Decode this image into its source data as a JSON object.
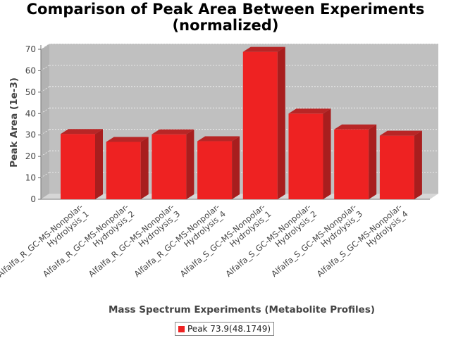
{
  "chart_data": {
    "type": "bar",
    "title": "Comparison of Peak Area Between Experiments",
    "subtitle": "(normalized)",
    "xlabel": "Mass Spectrum Experiments (Metabolite Profiles)",
    "ylabel": "Peak Area (1e-3)",
    "ylim": [
      0,
      70
    ],
    "yticks": [
      0,
      10,
      20,
      30,
      40,
      50,
      60,
      70
    ],
    "grid": true,
    "legend_position": "bottom",
    "categories": [
      [
        "Alfalfa_R_GC-MS-Nonpolar-",
        "Hydrolysis_1"
      ],
      [
        "Alfalfa_R_GC-MS-Nonpolar-",
        "Hydrolysis_2"
      ],
      [
        "Alfalfa_R_GC-MS-Nonpolar-",
        "Hydrolysis_3"
      ],
      [
        "Alfalfa_R_GC-MS-Nonpolar-",
        "Hydrolysis_4"
      ],
      [
        "Alfalfa_S_GC-MS-Nonpolar-",
        "Hydrolysis_1"
      ],
      [
        "Alfalfa_S_GC-MS-Nonpolar-",
        "Hydrolysis_2"
      ],
      [
        "Alfalfa_S_GC-MS-Nonpolar-",
        "Hydrolysis_3"
      ],
      [
        "Alfalfa_S_GC-MS-Nonpolar-",
        "Hydrolysis_4"
      ]
    ],
    "series": [
      {
        "name": "Peak 73.9(48.1749)",
        "color": "#ee2222",
        "values": [
          30.5,
          26.8,
          30.3,
          27.1,
          68.8,
          40.0,
          32.6,
          29.7
        ]
      }
    ]
  }
}
